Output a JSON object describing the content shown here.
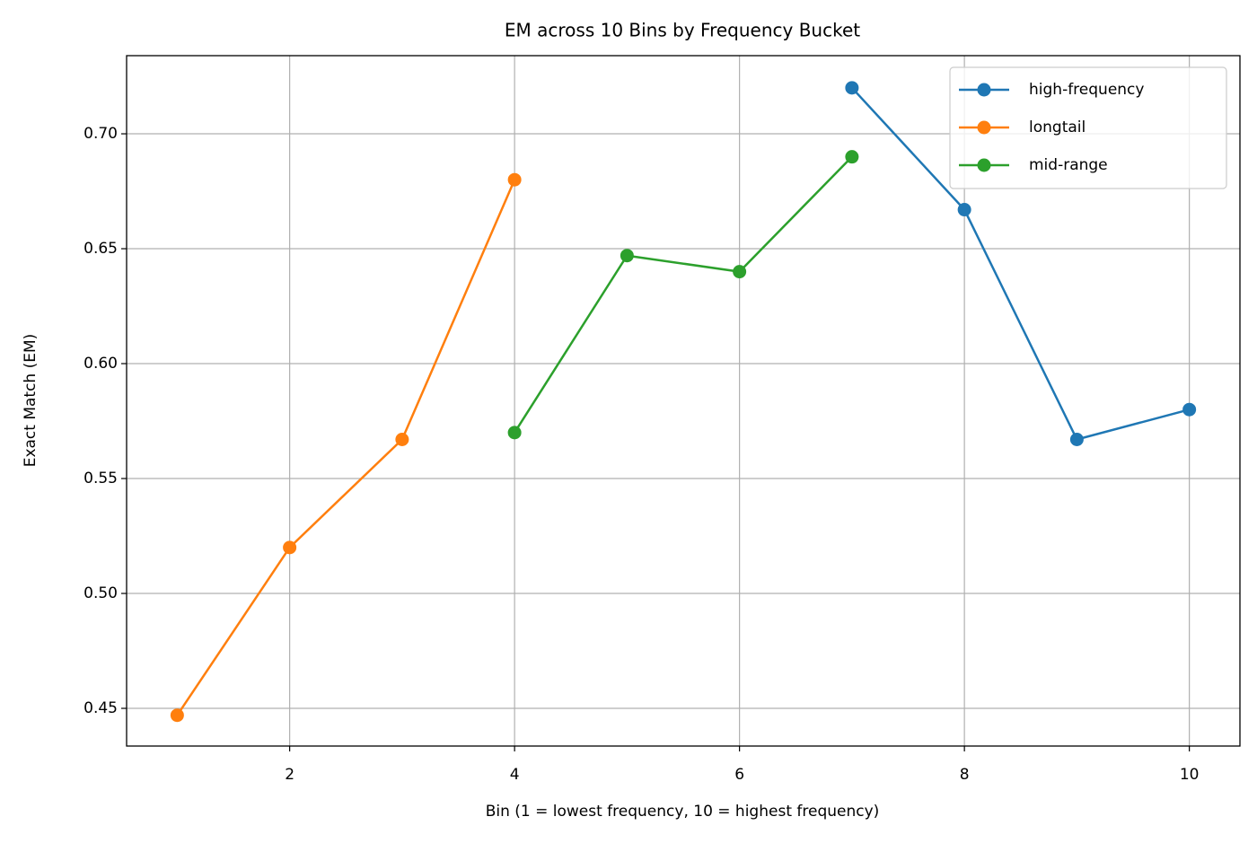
{
  "chart_data": {
    "type": "line",
    "title": "EM across 10 Bins by Frequency Bucket",
    "x_label": "Bin (1 = lowest frequency, 10 = highest frequency)",
    "y_label": "Exact Match (EM)",
    "x": [
      1,
      2,
      3,
      4,
      5,
      6,
      7,
      8,
      9,
      10
    ],
    "series": [
      {
        "name": "high-frequency",
        "color": "#1f77b4",
        "values": [
          null,
          null,
          null,
          null,
          null,
          null,
          0.72,
          0.667,
          0.567,
          0.58
        ]
      },
      {
        "name": "longtail",
        "color": "#ff7f0e",
        "values": [
          0.447,
          0.52,
          0.567,
          0.68,
          null,
          null,
          null,
          null,
          null,
          null
        ]
      },
      {
        "name": "mid-range",
        "color": "#2ca02c",
        "values": [
          null,
          null,
          null,
          0.57,
          0.647,
          0.64,
          0.69,
          null,
          null,
          null
        ]
      }
    ],
    "xlim": [
      0.55,
      10.45
    ],
    "xticks": [
      2,
      4,
      6,
      8,
      10
    ],
    "ylim": [
      0.4336,
      0.734
    ],
    "yticks": [
      0.45,
      {
        "value": 0.5,
        "label": "0.50"
      },
      0.55,
      {
        "value": 0.6,
        "label": "0.60"
      },
      0.65,
      {
        "value": 0.7,
        "label": "0.70"
      }
    ],
    "grid": true,
    "legend": "upper right",
    "markers": true
  }
}
